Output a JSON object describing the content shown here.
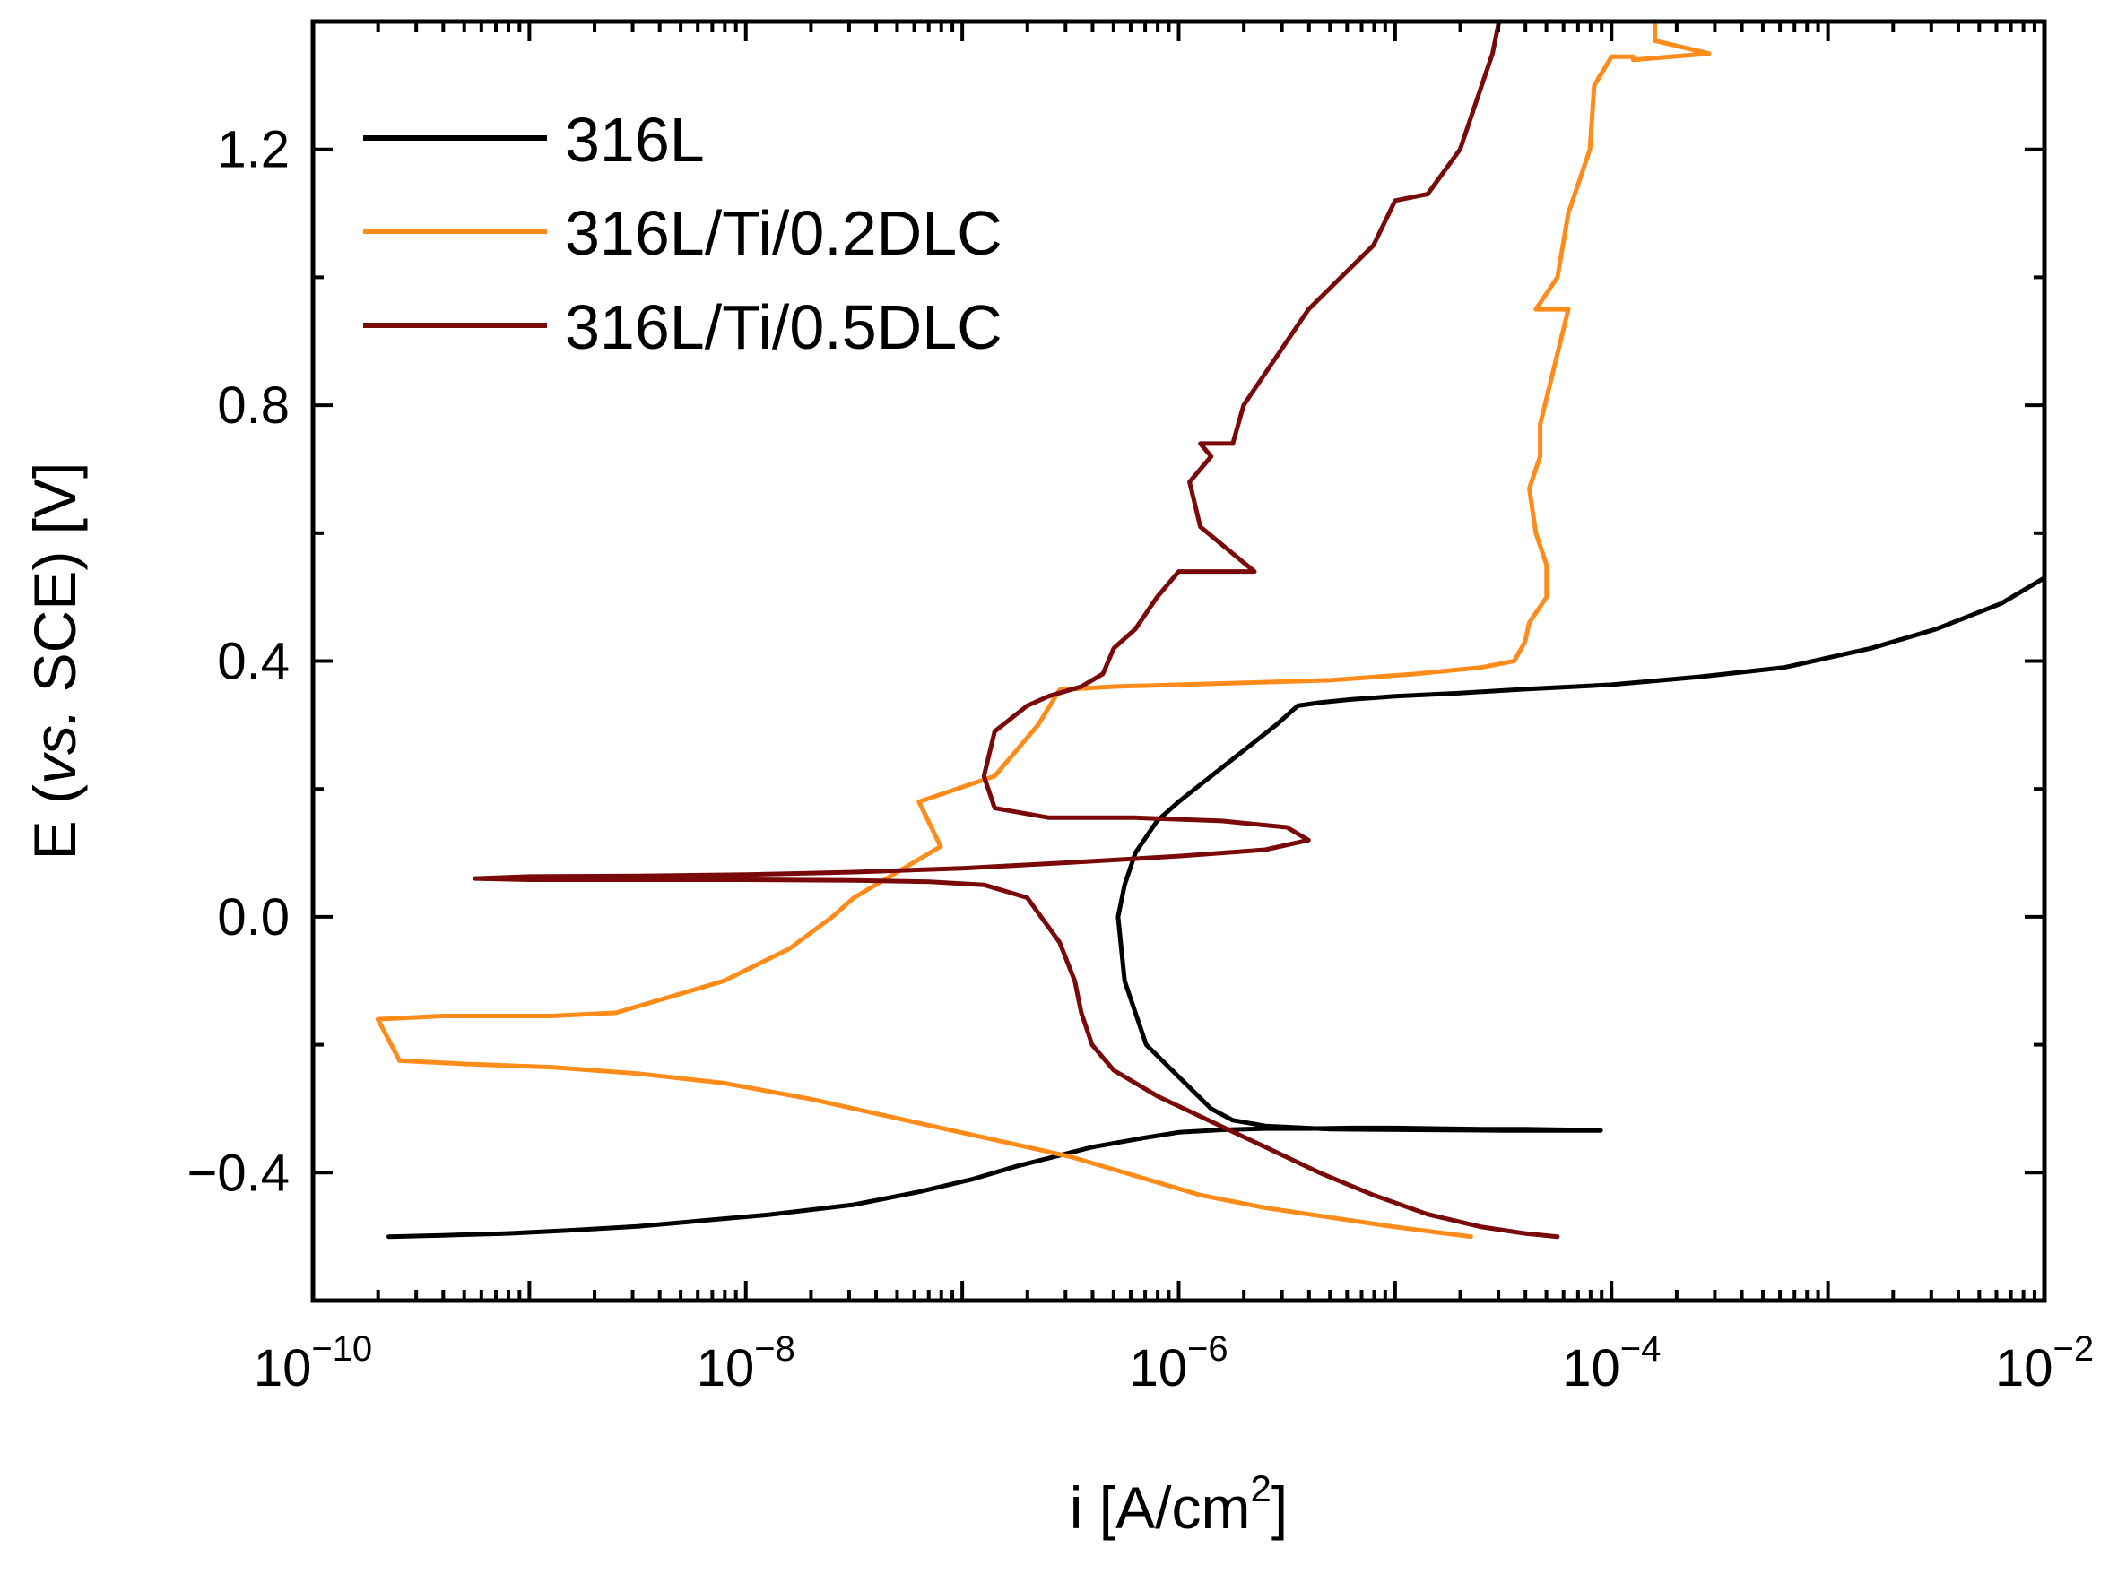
{
  "chart_data": {
    "type": "line",
    "title": "",
    "xlabel": {
      "base": "i [A/cm",
      "sup": "2",
      "end": "]"
    },
    "ylabel": {
      "pre": "E (",
      "italic": "vs.",
      "post": " SCE) [V]"
    },
    "xscale": "log",
    "xlim_exp": [
      -10,
      -2
    ],
    "ylim": [
      -0.6,
      1.4
    ],
    "xticks": [
      {
        "base": "10",
        "exp": "−10"
      },
      {
        "base": "10",
        "exp": "−8"
      },
      {
        "base": "10",
        "exp": "−6"
      },
      {
        "base": "10",
        "exp": "−4"
      },
      {
        "base": "10",
        "exp": "−2"
      }
    ],
    "yticks": [
      "−0.4",
      "0.0",
      "0.4",
      "0.8",
      "1.2"
    ],
    "ytick_values": [
      -0.4,
      0.0,
      0.4,
      0.8,
      1.2
    ],
    "legend_position": "top-left",
    "series": [
      {
        "name": "316L",
        "color": "#000000",
        "log_i": [
          -9.65,
          -9.4,
          -9.1,
          -8.8,
          -8.5,
          -8.2,
          -7.9,
          -7.5,
          -7.2,
          -6.95,
          -6.75,
          -6.4,
          -6.15,
          -6.0,
          -5.8,
          -5.6,
          -5.4,
          -5.2,
          -5.0,
          -4.8,
          -4.6,
          -4.4,
          -4.2,
          -4.05,
          -4.2,
          -4.5,
          -4.9,
          -5.3,
          -5.6,
          -5.75,
          -5.85,
          -6.0,
          -6.15,
          -6.25,
          -6.28,
          -6.25,
          -6.2,
          -6.1,
          -6.0,
          -5.85,
          -5.7,
          -5.55,
          -5.45,
          -5.35,
          -5.2,
          -5.0,
          -4.7,
          -4.4,
          -4.0,
          -3.6,
          -3.2,
          -2.8,
          -2.5,
          -2.2,
          -2.0
        ],
        "E": [
          -0.5,
          -0.498,
          -0.495,
          -0.49,
          -0.484,
          -0.475,
          -0.466,
          -0.45,
          -0.43,
          -0.41,
          -0.39,
          -0.36,
          -0.345,
          -0.337,
          -0.333,
          -0.331,
          -0.331,
          -0.33,
          -0.33,
          -0.331,
          -0.332,
          -0.332,
          -0.333,
          -0.334,
          -0.334,
          -0.334,
          -0.333,
          -0.332,
          -0.327,
          -0.318,
          -0.3,
          -0.25,
          -0.2,
          -0.1,
          0.0,
          0.05,
          0.1,
          0.15,
          0.18,
          0.22,
          0.26,
          0.3,
          0.33,
          0.335,
          0.34,
          0.345,
          0.35,
          0.356,
          0.363,
          0.375,
          0.39,
          0.42,
          0.45,
          0.49,
          0.53
        ]
      },
      {
        "name": "316L/Ti/0.2DLC",
        "color": "#ff8c1a",
        "log_i": [
          -4.65,
          -5.0,
          -5.3,
          -5.6,
          -5.9,
          -6.2,
          -6.5,
          -6.9,
          -7.3,
          -7.7,
          -8.1,
          -8.5,
          -8.9,
          -9.3,
          -9.6,
          -9.7,
          -9.4,
          -9.2,
          -8.9,
          -8.6,
          -8.4,
          -8.1,
          -7.8,
          -7.6,
          -7.5,
          -7.3,
          -7.1,
          -7.2,
          -6.85,
          -6.65,
          -6.55,
          -6.3,
          -5.8,
          -5.3,
          -4.9,
          -4.6,
          -4.45,
          -4.4,
          -4.38,
          -4.3,
          -4.3,
          -4.35,
          -4.38,
          -4.33,
          -4.33,
          -4.2,
          -4.35,
          -4.25,
          -4.2,
          -4.1,
          -4.08,
          -4.0,
          -3.9,
          -3.9,
          -3.55,
          -3.8,
          -3.8
        ],
        "E": [
          -0.5,
          -0.485,
          -0.47,
          -0.455,
          -0.435,
          -0.405,
          -0.375,
          -0.345,
          -0.315,
          -0.285,
          -0.26,
          -0.245,
          -0.235,
          -0.23,
          -0.225,
          -0.16,
          -0.155,
          -0.155,
          -0.155,
          -0.15,
          -0.13,
          -0.1,
          -0.05,
          0.0,
          0.03,
          0.07,
          0.11,
          0.18,
          0.22,
          0.3,
          0.355,
          0.36,
          0.365,
          0.37,
          0.38,
          0.39,
          0.4,
          0.43,
          0.46,
          0.5,
          0.55,
          0.6,
          0.67,
          0.72,
          0.77,
          0.95,
          0.95,
          1.0,
          1.1,
          1.2,
          1.3,
          1.345,
          1.345,
          1.34,
          1.35,
          1.37,
          1.4
        ]
      },
      {
        "name": "316L/Ti/0.5DLC",
        "color": "#7a0a0a",
        "log_i": [
          -4.25,
          -4.4,
          -4.6,
          -4.85,
          -5.1,
          -5.35,
          -5.6,
          -5.85,
          -6.1,
          -6.3,
          -6.4,
          -6.45,
          -6.48,
          -6.55,
          -6.7,
          -6.9,
          -7.15,
          -7.5,
          -8.0,
          -8.5,
          -9.0,
          -9.25,
          -9.0,
          -8.5,
          -8.0,
          -7.5,
          -7.0,
          -6.5,
          -6.0,
          -5.6,
          -5.4,
          -5.5,
          -5.8,
          -6.2,
          -6.6,
          -6.85,
          -6.9,
          -6.85,
          -6.7,
          -6.6,
          -6.45,
          -6.35,
          -6.3,
          -6.2,
          -6.1,
          -6.0,
          -5.85,
          -5.65,
          -5.9,
          -5.95,
          -5.85,
          -5.9,
          -5.75,
          -5.7,
          -5.6,
          -5.5,
          -5.4,
          -5.25,
          -5.1,
          -5.0,
          -4.85,
          -4.7,
          -4.65,
          -4.6,
          -4.55,
          -4.52
        ],
        "E": [
          -0.5,
          -0.495,
          -0.485,
          -0.465,
          -0.435,
          -0.4,
          -0.36,
          -0.32,
          -0.28,
          -0.24,
          -0.2,
          -0.15,
          -0.1,
          -0.04,
          0.03,
          0.05,
          0.055,
          0.057,
          0.058,
          0.058,
          0.058,
          0.06,
          0.063,
          0.064,
          0.066,
          0.07,
          0.076,
          0.085,
          0.095,
          0.105,
          0.12,
          0.14,
          0.15,
          0.155,
          0.155,
          0.17,
          0.22,
          0.29,
          0.33,
          0.345,
          0.36,
          0.38,
          0.42,
          0.45,
          0.5,
          0.54,
          0.54,
          0.54,
          0.61,
          0.68,
          0.72,
          0.74,
          0.74,
          0.8,
          0.85,
          0.9,
          0.95,
          1.0,
          1.05,
          1.12,
          1.13,
          1.2,
          1.25,
          1.3,
          1.35,
          1.4
        ]
      }
    ]
  }
}
